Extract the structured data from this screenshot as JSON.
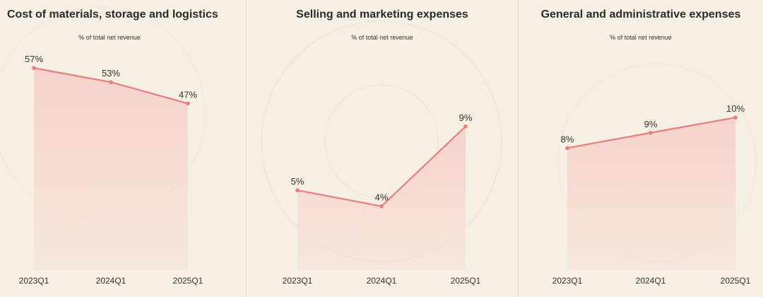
{
  "colors": {
    "line": "#e87d7b",
    "fill": "#f5c9c4",
    "background": "#f6efe4"
  },
  "chart_data": [
    {
      "type": "area",
      "title": "Cost of materials, storage and logistics",
      "subtitle": "% of total net revenue",
      "categories": [
        "2023Q1",
        "2024Q1",
        "2025Q1"
      ],
      "values": [
        57,
        53,
        47
      ],
      "labels": [
        "57%",
        "53%",
        "47%"
      ],
      "ylim": [
        0,
        65
      ]
    },
    {
      "type": "area",
      "title": "Selling and marketing expenses",
      "subtitle": "% of total net revenue",
      "categories": [
        "2023Q1",
        "2024Q1",
        "2025Q1"
      ],
      "values": [
        5,
        4,
        9
      ],
      "labels": [
        "5%",
        "4%",
        "9%"
      ],
      "ylim": [
        0,
        12
      ]
    },
    {
      "type": "area",
      "title": "General and administrative expenses",
      "subtitle": "% of total net revenue",
      "categories": [
        "2023Q1",
        "2024Q1",
        "2025Q1"
      ],
      "values": [
        8,
        9,
        10
      ],
      "labels": [
        "8%",
        "9%",
        "10%"
      ],
      "ylim": [
        0,
        12
      ]
    }
  ]
}
